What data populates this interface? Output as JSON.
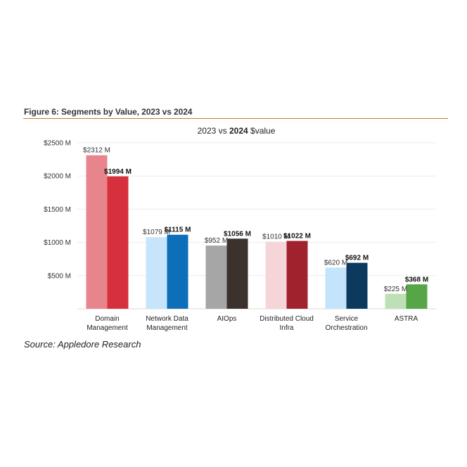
{
  "figure": {
    "title": "Figure 6: Segments by Value, 2023 vs 2024",
    "source": "Source: Appledore Research"
  },
  "chart_data": {
    "type": "bar",
    "title_parts": [
      "2023 vs ",
      "2024",
      " $value"
    ],
    "categories": [
      [
        "Domain",
        "Management"
      ],
      [
        "Network Data",
        "Management"
      ],
      [
        "AIOps"
      ],
      [
        "Distributed Cloud",
        "Infra"
      ],
      [
        "Service",
        "Orchestration"
      ],
      [
        "ASTRA"
      ]
    ],
    "series": [
      {
        "values": [
          2312,
          1079,
          952,
          1010,
          620,
          225
        ],
        "labels": [
          "$2312 M",
          "$1079 M",
          "$952 M",
          "$1010 M",
          "$620 M",
          "$225 M"
        ],
        "colors": [
          "#e8848c",
          "#c6e5fb",
          "#a6a6a6",
          "#f6d5d8",
          "#c4e4fb",
          "#bde0b6"
        ]
      },
      {
        "values": [
          1994,
          1115,
          1056,
          1022,
          692,
          368
        ],
        "labels": [
          "$1994 M",
          "$1115 M",
          "$1056 M",
          "$1022 M",
          "$692 M",
          "$368 M"
        ],
        "colors": [
          "#d6303c",
          "#0c6fb8",
          "#3b322d",
          "#a0222d",
          "#0b3a5e",
          "#56a648"
        ]
      }
    ],
    "yticks": [
      500,
      1000,
      1500,
      2000,
      2500
    ],
    "ytick_labels": [
      "$500 M",
      "$1000 M",
      "$1500 M",
      "$2000 M",
      "$2500 M"
    ],
    "ylim": [
      0,
      2500
    ],
    "grid": true,
    "legend": "none"
  }
}
